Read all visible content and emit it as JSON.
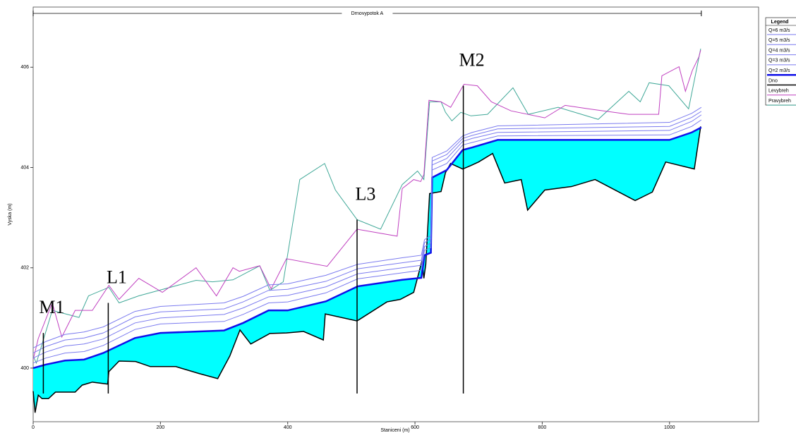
{
  "chart_data": {
    "type": "line",
    "reach": {
      "name": "Drnovypotok A",
      "x": [
        0,
        1050
      ]
    },
    "xlabel": "Staniceni (m)",
    "ylabel": "Vyska (m)",
    "legend_title": "Legend",
    "legend": "upper right",
    "xlim": [
      0,
      1140
    ],
    "ylim": [
      398.93,
      407.2
    ],
    "xticks": [
      0,
      200,
      400,
      600,
      800,
      1000
    ],
    "yticks": [
      400,
      402,
      404,
      406
    ],
    "series": [
      {
        "name": "Q=6 m3/s",
        "color": "#7b7bef",
        "line_width": 1,
        "x": [
          0,
          20,
          50,
          80,
          110,
          160,
          200,
          300,
          330,
          370,
          400,
          460,
          510,
          580,
          610,
          615,
          625,
          627,
          650,
          675,
          690,
          730,
          1000,
          1035,
          1050
        ],
        "values": [
          400.4,
          400.53,
          400.67,
          400.72,
          400.82,
          401.13,
          401.23,
          401.3,
          401.43,
          401.66,
          401.68,
          401.85,
          402.07,
          402.2,
          402.25,
          402.56,
          402.65,
          404.2,
          404.33,
          404.63,
          404.7,
          404.83,
          404.9,
          405.08,
          405.2
        ]
      },
      {
        "name": "Q=5 m3/s",
        "color": "#7b7bef",
        "line_width": 1,
        "x": [
          0,
          20,
          50,
          80,
          110,
          160,
          200,
          300,
          330,
          370,
          400,
          460,
          510,
          580,
          610,
          615,
          625,
          627,
          650,
          675,
          690,
          730,
          1000,
          1035,
          1050
        ],
        "values": [
          400.3,
          400.43,
          400.56,
          400.6,
          400.7,
          401.02,
          401.12,
          401.18,
          401.32,
          401.55,
          401.57,
          401.73,
          401.98,
          402.1,
          402.15,
          402.5,
          402.58,
          404.13,
          404.26,
          404.58,
          404.64,
          404.77,
          404.82,
          405.0,
          405.12
        ]
      },
      {
        "name": "Q=4 m3/s",
        "color": "#7b7bef",
        "line_width": 1,
        "x": [
          0,
          20,
          50,
          80,
          110,
          160,
          200,
          300,
          330,
          370,
          400,
          460,
          510,
          580,
          610,
          615,
          625,
          627,
          650,
          675,
          690,
          730,
          1000,
          1035,
          1050
        ],
        "values": [
          400.2,
          400.32,
          400.44,
          400.48,
          400.58,
          400.9,
          401.0,
          401.07,
          401.2,
          401.42,
          401.45,
          401.62,
          401.88,
          402.0,
          402.05,
          402.42,
          402.5,
          404.05,
          404.18,
          404.52,
          404.58,
          404.7,
          404.74,
          404.92,
          405.05
        ]
      },
      {
        "name": "Q=3 m3/s",
        "color": "#7b7bef",
        "line_width": 1,
        "x": [
          0,
          20,
          50,
          80,
          110,
          160,
          200,
          300,
          330,
          370,
          400,
          460,
          510,
          580,
          610,
          615,
          625,
          627,
          650,
          675,
          690,
          730,
          1000,
          1035,
          1050
        ],
        "values": [
          400.1,
          400.2,
          400.3,
          400.33,
          400.45,
          400.77,
          400.88,
          400.93,
          401.07,
          401.3,
          401.32,
          401.5,
          401.78,
          401.9,
          401.95,
          402.35,
          402.4,
          403.95,
          404.08,
          404.45,
          404.5,
          404.63,
          404.65,
          404.82,
          404.95
        ]
      },
      {
        "name": "Q=2 m3/s",
        "color": "#1010e8",
        "line_width": 2.5,
        "fill": "#00ffff",
        "x": [
          0,
          20,
          50,
          80,
          110,
          160,
          200,
          300,
          330,
          370,
          400,
          460,
          510,
          580,
          610,
          615,
          625,
          627,
          650,
          675,
          690,
          730,
          1000,
          1035,
          1050
        ],
        "values": [
          400.0,
          400.07,
          400.15,
          400.17,
          400.3,
          400.6,
          400.7,
          400.75,
          400.9,
          401.15,
          401.15,
          401.33,
          401.63,
          401.76,
          401.8,
          402.25,
          402.3,
          403.8,
          403.95,
          404.35,
          404.4,
          404.55,
          404.55,
          404.7,
          404.8
        ]
      },
      {
        "name": "Dno",
        "color": "#000000",
        "line_width": 1.5,
        "x": [
          0,
          3,
          8,
          14,
          24,
          35,
          66,
          77,
          93,
          117,
          119,
          135,
          161,
          184,
          224,
          261,
          290,
          309,
          325,
          342,
          372,
          398,
          425,
          456,
          459,
          509,
          556,
          577,
          598,
          611,
          614,
          617,
          623,
          641,
          648,
          656,
          675,
          688,
          700,
          722,
          741,
          767,
          777,
          804,
          846,
          883,
          946,
          973,
          994,
          1039,
          1049
        ],
        "values": [
          399.54,
          399.11,
          399.46,
          399.39,
          399.39,
          399.52,
          399.52,
          399.66,
          399.72,
          399.68,
          399.93,
          400.14,
          400.13,
          400.03,
          400.03,
          399.89,
          399.79,
          400.24,
          400.76,
          400.48,
          400.69,
          400.7,
          400.73,
          400.56,
          401.08,
          400.94,
          401.32,
          401.37,
          401.51,
          402.14,
          401.79,
          402.07,
          403.48,
          403.52,
          403.9,
          404.08,
          403.97,
          404.04,
          404.11,
          404.28,
          403.69,
          403.76,
          403.15,
          403.55,
          403.62,
          403.76,
          403.34,
          403.51,
          404.11,
          403.97,
          404.82
        ]
      },
      {
        "name": "Levybreh",
        "color": "#c040c0",
        "line_width": 1,
        "x": [
          0,
          8,
          30,
          45,
          66,
          93,
          119,
          135,
          166,
          203,
          256,
          288,
          314,
          324,
          356,
          374,
          398,
          462,
          509,
          572,
          580,
          598,
          609,
          614,
          622,
          641,
          656,
          677,
          698,
          720,
          751,
          804,
          836,
          873,
          936,
          983,
          988,
          1015,
          1025,
          1036,
          1046,
          1049
        ],
        "values": [
          400.17,
          400.59,
          401.3,
          400.62,
          401.15,
          401.15,
          401.65,
          401.37,
          401.79,
          401.51,
          402.0,
          401.44,
          402.0,
          401.93,
          402.04,
          401.58,
          402.18,
          402.03,
          402.77,
          402.63,
          403.58,
          403.76,
          403.72,
          403.86,
          405.34,
          405.31,
          405.2,
          405.66,
          405.63,
          405.31,
          405.13,
          404.99,
          405.24,
          405.17,
          405.06,
          405.06,
          405.83,
          406.01,
          405.52,
          405.94,
          406.2,
          406.34
        ]
      },
      {
        "name": "Pravybreh",
        "color": "#40a898",
        "line_width": 1,
        "x": [
          0,
          5,
          30,
          51,
          72,
          87,
          119,
          135,
          166,
          256,
          282,
          314,
          356,
          372,
          393,
          419,
          458,
          475,
          509,
          546,
          580,
          604,
          614,
          623,
          641,
          648,
          658,
          672,
          688,
          714,
          754,
          778,
          825,
          888,
          936,
          954,
          968,
          999,
          1030,
          1049
        ],
        "values": [
          400.24,
          400.1,
          401.15,
          401.08,
          401.01,
          401.44,
          401.61,
          401.3,
          401.44,
          401.75,
          401.72,
          401.76,
          402.04,
          401.55,
          401.72,
          403.76,
          404.08,
          403.55,
          402.96,
          402.77,
          403.66,
          403.93,
          403.76,
          405.31,
          405.31,
          405.1,
          404.93,
          405.1,
          405.03,
          405.06,
          405.59,
          405.06,
          405.2,
          404.96,
          405.52,
          405.31,
          405.69,
          405.63,
          405.17,
          406.37
        ]
      }
    ],
    "annotations": [
      {
        "text": "M1",
        "x": 16,
        "top": 400.7
      },
      {
        "text": "L1",
        "x": 118,
        "top": 401.3
      },
      {
        "text": "L3",
        "x": 509,
        "top": 402.96
      },
      {
        "text": "M2",
        "x": 676,
        "top": 405.63
      }
    ]
  }
}
